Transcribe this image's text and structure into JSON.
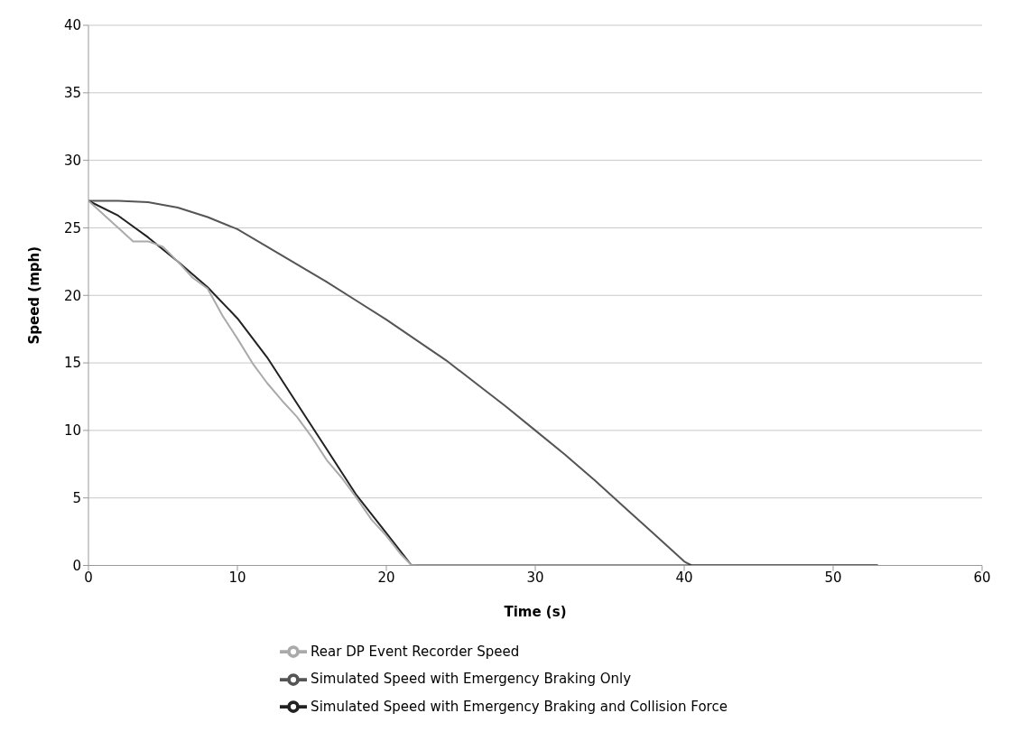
{
  "chart_data": {
    "type": "line",
    "xlabel": "Time (s)",
    "ylabel": "Speed (mph)",
    "xlim": [
      0,
      60
    ],
    "xticks": [
      0,
      10,
      20,
      30,
      40,
      50,
      60
    ],
    "ylim": [
      0,
      40
    ],
    "yticks": [
      0,
      5,
      10,
      15,
      20,
      25,
      30,
      35,
      40
    ],
    "grid": "y",
    "legend": "bottom",
    "marker": "none",
    "line_style": "solid",
    "series": [
      {
        "name": "Simulated Speed with Emergency Braking Only",
        "color": "#555555",
        "x": [
          0,
          2,
          4,
          6,
          8,
          10,
          12,
          14,
          16,
          18,
          20,
          22,
          24,
          26,
          28,
          30,
          32,
          34,
          36,
          38,
          40,
          40.5,
          53
        ],
        "values": [
          27,
          27,
          26.9,
          26.5,
          25.8,
          24.9,
          23.6,
          22.3,
          21,
          19.6,
          18.2,
          16.7,
          15.2,
          13.5,
          11.8,
          10,
          8.2,
          6.3,
          4.3,
          2.3,
          0.3,
          0,
          0
        ]
      },
      {
        "name": "Simulated Speed with Emergency Braking and Collision Force",
        "color": "#222222",
        "x": [
          0,
          2,
          4,
          6,
          8,
          10,
          12,
          14,
          16,
          18,
          20,
          21.7,
          53
        ],
        "values": [
          27,
          25.9,
          24.3,
          22.5,
          20.6,
          18.3,
          15.4,
          12,
          8.6,
          5.2,
          2.4,
          0,
          0
        ]
      },
      {
        "name": "Rear DP Event Recorder Speed",
        "color": "#aaaaaa",
        "x": [
          0,
          1,
          2,
          3,
          4,
          5,
          6,
          7,
          8,
          9,
          10,
          11,
          12,
          13,
          14,
          15,
          16,
          17,
          18,
          19,
          20,
          21,
          21.7,
          22
        ],
        "values": [
          27,
          26,
          25,
          24,
          24,
          23.6,
          22.5,
          21.3,
          20.5,
          18.5,
          16.8,
          15,
          13.5,
          12.2,
          11,
          9.5,
          7.8,
          6.5,
          5,
          3.4,
          2.2,
          0.8,
          0,
          0
        ]
      }
    ]
  }
}
